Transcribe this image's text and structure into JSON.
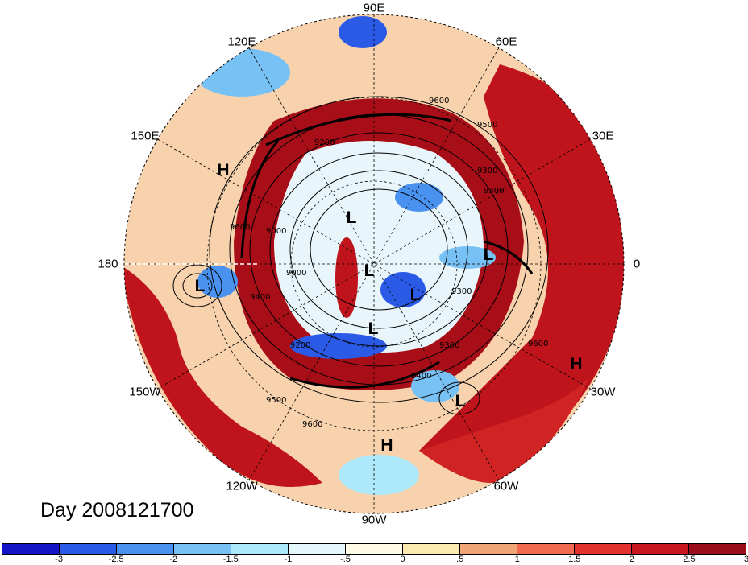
{
  "map": {
    "projection": "north polar stereographic",
    "longitude_labels": [
      {
        "text": "90E",
        "angle": 90
      },
      {
        "text": "60E",
        "angle": 60
      },
      {
        "text": "30E",
        "angle": 30
      },
      {
        "text": "0",
        "angle": 0
      },
      {
        "text": "30W",
        "angle": -30
      },
      {
        "text": "60W",
        "angle": -60
      },
      {
        "text": "90W",
        "angle": -90
      },
      {
        "text": "120W",
        "angle": -120
      },
      {
        "text": "150W",
        "angle": -150
      },
      {
        "text": "180",
        "angle": 180
      },
      {
        "text": "150E",
        "angle": 150
      },
      {
        "text": "120E",
        "angle": 120
      }
    ],
    "pressure_centers": [
      {
        "type": "L",
        "name": "low-aleutian"
      },
      {
        "type": "L",
        "name": "low-siberia"
      },
      {
        "type": "L",
        "name": "low-pole"
      },
      {
        "type": "L",
        "name": "low-canada-east"
      },
      {
        "type": "L",
        "name": "low-canada"
      },
      {
        "type": "L",
        "name": "low-atlantic"
      },
      {
        "type": "L",
        "name": "low-scandinavia"
      },
      {
        "type": "H",
        "name": "high-north-pacific"
      },
      {
        "type": "H",
        "name": "high-mexico"
      },
      {
        "type": "H",
        "name": "high-azores"
      }
    ],
    "contour_labels": [
      "9600",
      "9500",
      "9300",
      "9200",
      "9000",
      "9400",
      "9300",
      "9200",
      "9000",
      "9500",
      "9600",
      "9400",
      "9600",
      "9600",
      "9300",
      "9300"
    ],
    "date_label": "Day 2008121700"
  },
  "colorbar": {
    "colors": [
      "#1515c8",
      "#2a5ae6",
      "#4a92ef",
      "#78c1f5",
      "#aee8fb",
      "#e4f8fc",
      "#fdfae6",
      "#fbe9b1",
      "#f2a577",
      "#ef6a50",
      "#e33130",
      "#c9161f",
      "#9b0d1a"
    ],
    "tick_labels": [
      "-3",
      "-2.5",
      "-2",
      "-1.5",
      "-1",
      "-.5",
      "0",
      ".5",
      "1",
      "1.5",
      "2",
      "2.5",
      "3"
    ]
  }
}
